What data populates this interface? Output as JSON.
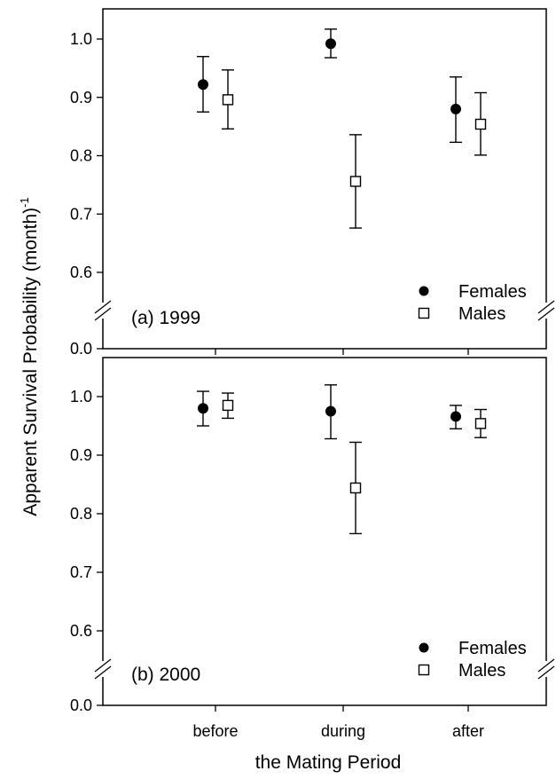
{
  "figure": {
    "ylabel": "Apparent Survival Probability (month)",
    "ylabel_superscript": "-1",
    "xlabel": "the Mating Period"
  },
  "chart_data": [
    {
      "type": "scatter",
      "panel_label": "(a) 1999",
      "categories": [
        "before",
        "during",
        "after"
      ],
      "ylabel": "Apparent Survival Probability (month)^-1",
      "xlabel": "the Mating Period",
      "y_ticks": [
        "0.0",
        "0.6",
        "0.7",
        "0.8",
        "0.9",
        "1.0"
      ],
      "y_axis_break": true,
      "legend_position": "bottom-right",
      "series": [
        {
          "name": "Females",
          "marker": "filled-circle",
          "color": "#000000",
          "values": [
            0.922,
            0.992,
            0.88
          ],
          "err_low": [
            0.875,
            0.968,
            0.823
          ],
          "err_high": [
            0.97,
            1.017,
            0.935
          ]
        },
        {
          "name": "Males",
          "marker": "open-square",
          "color": "#000000",
          "values": [
            0.896,
            0.756,
            0.854
          ],
          "err_low": [
            0.846,
            0.676,
            0.801
          ],
          "err_high": [
            0.947,
            0.836,
            0.908
          ]
        }
      ]
    },
    {
      "type": "scatter",
      "panel_label": "(b) 2000",
      "categories": [
        "before",
        "during",
        "after"
      ],
      "ylabel": "Apparent Survival Probability (month)^-1",
      "xlabel": "the Mating Period",
      "y_ticks": [
        "0.0",
        "0.6",
        "0.7",
        "0.8",
        "0.9",
        "1.0"
      ],
      "y_axis_break": true,
      "legend_position": "bottom-right",
      "series": [
        {
          "name": "Females",
          "marker": "filled-circle",
          "color": "#000000",
          "values": [
            0.98,
            0.975,
            0.966
          ],
          "err_low": [
            0.95,
            0.928,
            0.945
          ],
          "err_high": [
            1.009,
            1.02,
            0.985
          ]
        },
        {
          "name": "Males",
          "marker": "open-square",
          "color": "#000000",
          "values": [
            0.985,
            0.844,
            0.954
          ],
          "err_low": [
            0.963,
            0.766,
            0.93
          ],
          "err_high": [
            1.006,
            0.922,
            0.978
          ]
        }
      ]
    }
  ]
}
